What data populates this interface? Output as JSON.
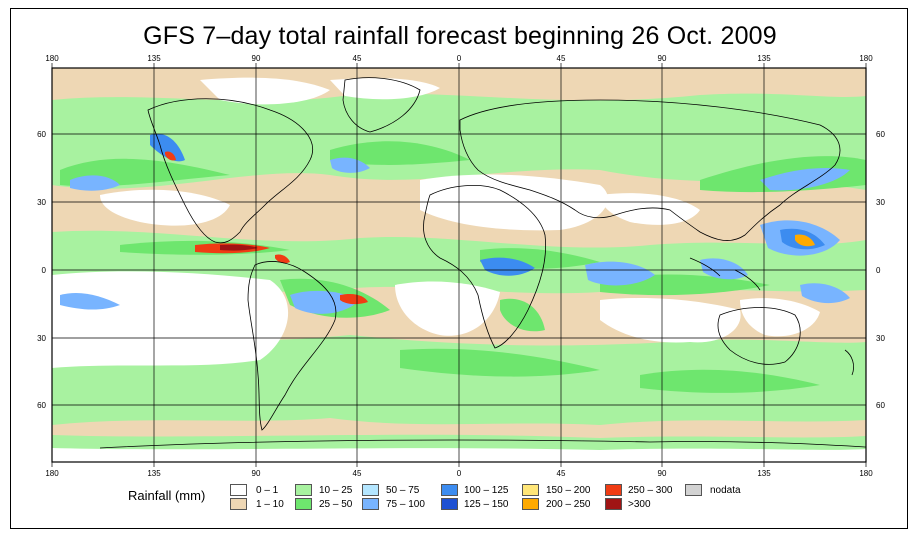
{
  "title": "GFS 7–day total rainfall forecast beginning 26 Oct. 2009",
  "axes": {
    "top_lon_labels": [
      "180",
      "135",
      "90",
      "45",
      "0",
      "45",
      "90",
      "135",
      "180"
    ],
    "bottom_lon_labels": [
      "180",
      "135",
      "90",
      "45",
      "0",
      "45",
      "90",
      "135",
      "180"
    ],
    "left_lat_labels": [
      "60",
      "30",
      "0",
      "30",
      "60"
    ],
    "right_lat_labels": [
      "60",
      "30",
      "0",
      "30",
      "60"
    ]
  },
  "legend": {
    "title": "Rainfall (mm)",
    "items": [
      {
        "label": "0 – 1",
        "color": "#ffffff"
      },
      {
        "label": "1 – 10",
        "color": "#eed7b4"
      },
      {
        "label": "10 – 25",
        "color": "#a8f2a0"
      },
      {
        "label": "25 – 50",
        "color": "#6ee66e"
      },
      {
        "label": "50 – 75",
        "color": "#b4e6ff"
      },
      {
        "label": "75 – 100",
        "color": "#78b4ff"
      },
      {
        "label": "100 – 125",
        "color": "#3c8cf0"
      },
      {
        "label": "125 – 150",
        "color": "#1e50d2"
      },
      {
        "label": "150 – 200",
        "color": "#ffe678"
      },
      {
        "label": "200 – 250",
        "color": "#ffaa00"
      },
      {
        "label": "250 – 300",
        "color": "#f03c14"
      },
      {
        "label": ">300",
        "color": "#a01414"
      },
      {
        "label": "nodata",
        "color": "#d2d2d2"
      }
    ]
  }
}
